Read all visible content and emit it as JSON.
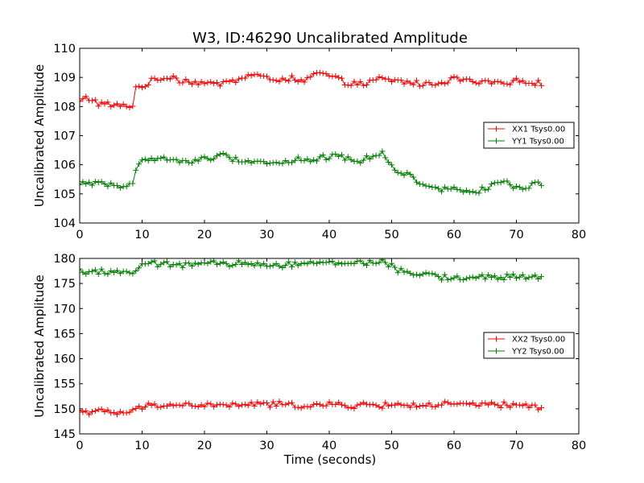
{
  "figure_title": "W3, ID:46290 Uncalibrated Amplitude",
  "x_axis_label": "Time (seconds)",
  "colors": {
    "red": "#ff0000",
    "green": "#008000"
  },
  "chart_data": [
    {
      "type": "line",
      "title": "W3, ID:46290 Uncalibrated Amplitude",
      "xlabel": "",
      "ylabel": "Uncalibrated Amplitude",
      "xlim": [
        0,
        80
      ],
      "ylim": [
        104,
        110
      ],
      "xticks": [
        0,
        10,
        20,
        30,
        40,
        50,
        60,
        70,
        80
      ],
      "yticks": [
        104,
        105,
        106,
        107,
        108,
        109,
        110
      ],
      "legend_position": "center-right",
      "marker": "+",
      "grid": false,
      "series": [
        {
          "name": "XX1 Tsys0.00",
          "color": "#ff0000",
          "keyframes": [
            [
              0,
              108.15
            ],
            [
              1,
              108.3
            ],
            [
              2,
              108.25
            ],
            [
              3,
              108.1
            ],
            [
              5,
              108.05
            ],
            [
              7,
              108.0
            ],
            [
              8.5,
              108.05
            ],
            [
              9,
              108.65
            ],
            [
              10,
              108.7
            ],
            [
              11,
              108.8
            ],
            [
              12,
              108.9
            ],
            [
              14,
              109.0
            ],
            [
              15,
              109.05
            ],
            [
              16,
              108.9
            ],
            [
              18,
              108.85
            ],
            [
              20,
              108.8
            ],
            [
              22,
              108.75
            ],
            [
              23,
              108.85
            ],
            [
              25,
              108.9
            ],
            [
              27,
              109.05
            ],
            [
              28,
              109.1
            ],
            [
              30,
              108.95
            ],
            [
              32,
              108.95
            ],
            [
              34,
              108.95
            ],
            [
              35,
              108.8
            ],
            [
              37,
              109.0
            ],
            [
              38,
              109.15
            ],
            [
              40,
              109.05
            ],
            [
              42,
              108.85
            ],
            [
              44,
              108.8
            ],
            [
              46,
              108.75
            ],
            [
              48,
              108.95
            ],
            [
              50,
              108.9
            ],
            [
              52,
              108.85
            ],
            [
              54,
              108.8
            ],
            [
              56,
              108.75
            ],
            [
              58,
              108.85
            ],
            [
              60,
              108.95
            ],
            [
              62,
              108.9
            ],
            [
              64,
              108.8
            ],
            [
              66,
              108.85
            ],
            [
              68,
              108.75
            ],
            [
              70,
              108.85
            ],
            [
              72,
              108.9
            ],
            [
              74,
              108.75
            ]
          ]
        },
        {
          "name": "YY1 Tsys0.00",
          "color": "#008000",
          "keyframes": [
            [
              0,
              105.3
            ],
            [
              2,
              105.4
            ],
            [
              3,
              105.4
            ],
            [
              4,
              105.35
            ],
            [
              6,
              105.3
            ],
            [
              7,
              105.2
            ],
            [
              8.5,
              105.3
            ],
            [
              9,
              105.9
            ],
            [
              10,
              106.1
            ],
            [
              11,
              106.25
            ],
            [
              13,
              106.2
            ],
            [
              15,
              106.15
            ],
            [
              17,
              106.1
            ],
            [
              19,
              106.15
            ],
            [
              21,
              106.25
            ],
            [
              23,
              106.3
            ],
            [
              25,
              106.2
            ],
            [
              27,
              106.15
            ],
            [
              29,
              106.1
            ],
            [
              31,
              106.05
            ],
            [
              33,
              106.1
            ],
            [
              35,
              106.2
            ],
            [
              37,
              106.1
            ],
            [
              39,
              106.25
            ],
            [
              41,
              106.3
            ],
            [
              43,
              106.25
            ],
            [
              45,
              106.1
            ],
            [
              47,
              106.3
            ],
            [
              48.5,
              106.45
            ],
            [
              50,
              105.95
            ],
            [
              52,
              105.7
            ],
            [
              54,
              105.5
            ],
            [
              56,
              105.2
            ],
            [
              58,
              105.15
            ],
            [
              60,
              105.2
            ],
            [
              62,
              105.15
            ],
            [
              64,
              105.1
            ],
            [
              66,
              105.25
            ],
            [
              67,
              105.4
            ],
            [
              69,
              105.3
            ],
            [
              71,
              105.2
            ],
            [
              72,
              105.25
            ],
            [
              74,
              105.35
            ]
          ]
        }
      ]
    },
    {
      "type": "line",
      "title": "",
      "xlabel": "Time (seconds)",
      "ylabel": "Uncalibrated Amplitude",
      "xlim": [
        0,
        80
      ],
      "ylim": [
        145,
        180
      ],
      "xticks": [
        0,
        10,
        20,
        30,
        40,
        50,
        60,
        70,
        80
      ],
      "yticks": [
        145,
        150,
        155,
        160,
        165,
        170,
        175,
        180
      ],
      "legend_position": "center-right",
      "marker": "+",
      "grid": false,
      "series": [
        {
          "name": "XX2 Tsys0.00",
          "color": "#ff0000",
          "keyframes": [
            [
              0,
              149.6
            ],
            [
              3,
              149.4
            ],
            [
              6,
              149.2
            ],
            [
              8.5,
              149.3
            ],
            [
              9,
              149.9
            ],
            [
              10,
              150.4
            ],
            [
              12,
              150.6
            ],
            [
              14,
              150.9
            ],
            [
              16,
              150.75
            ],
            [
              20,
              150.7
            ],
            [
              24,
              150.65
            ],
            [
              28,
              150.95
            ],
            [
              32,
              150.8
            ],
            [
              36,
              150.7
            ],
            [
              40,
              150.75
            ],
            [
              44,
              150.65
            ],
            [
              48,
              150.75
            ],
            [
              52,
              150.8
            ],
            [
              56,
              150.7
            ],
            [
              60,
              150.85
            ],
            [
              64,
              150.8
            ],
            [
              68,
              150.7
            ],
            [
              72,
              150.6
            ],
            [
              74,
              150.4
            ]
          ]
        },
        {
          "name": "YY2 Tsys0.00",
          "color": "#008000",
          "keyframes": [
            [
              0,
              177.5
            ],
            [
              3,
              177.4
            ],
            [
              6,
              177.3
            ],
            [
              8.5,
              177.3
            ],
            [
              9,
              177.7
            ],
            [
              10,
              178.4
            ],
            [
              12,
              178.9
            ],
            [
              16,
              178.8
            ],
            [
              20,
              178.85
            ],
            [
              24,
              178.9
            ],
            [
              28,
              178.95
            ],
            [
              32,
              178.8
            ],
            [
              36,
              179.0
            ],
            [
              40,
              179.05
            ],
            [
              44,
              179.15
            ],
            [
              48,
              179.3
            ],
            [
              49.5,
              178.9
            ],
            [
              51,
              177.6
            ],
            [
              53,
              177.0
            ],
            [
              55,
              176.7
            ],
            [
              58,
              176.3
            ],
            [
              62,
              176.15
            ],
            [
              66,
              176.2
            ],
            [
              70,
              176.25
            ],
            [
              74,
              176.4
            ]
          ]
        }
      ]
    }
  ]
}
